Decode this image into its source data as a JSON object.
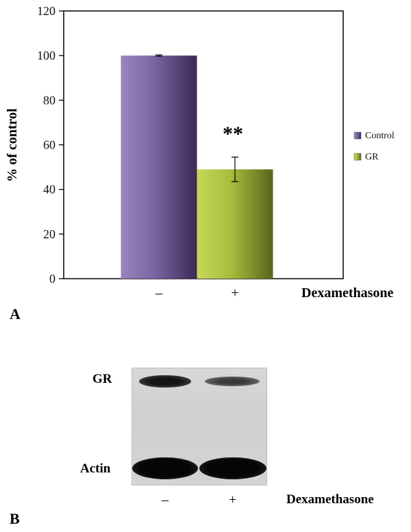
{
  "chart_data": {
    "type": "bar",
    "categories": [
      "–",
      "+"
    ],
    "series": [
      {
        "name": "Control",
        "values": [
          100,
          null
        ],
        "color": "#6f5a96"
      },
      {
        "name": "GR",
        "values": [
          null,
          49
        ],
        "color": "#9fb13a"
      }
    ],
    "error_bars": [
      0.3,
      5.5
    ],
    "annotations": [
      {
        "category": "+",
        "text": "**"
      }
    ],
    "ylabel": "% of control",
    "xlabel": "Dexamethasone",
    "ylim": [
      0,
      120
    ],
    "yticks": [
      0,
      20,
      40,
      60,
      80,
      100,
      120
    ],
    "grid": false,
    "legend_position": "right"
  },
  "panels": {
    "a_label": "A",
    "b_label": "B"
  },
  "blot": {
    "band_labels": [
      "GR",
      "Actin"
    ],
    "lane_labels": [
      "–",
      "+"
    ],
    "treatment_label": "Dexamethasone",
    "gr_band_intensity": [
      1.0,
      0.5
    ],
    "actin_band_intensity": [
      1.0,
      1.0
    ]
  }
}
